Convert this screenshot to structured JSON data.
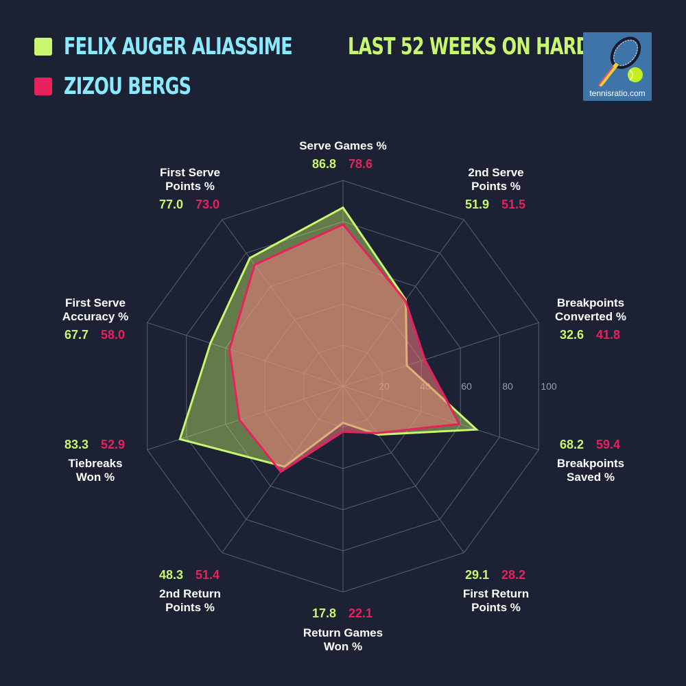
{
  "header": {
    "title": "LAST 52 WEEKS ON HARD",
    "logo_text": "tennisratio.com"
  },
  "colors": {
    "background": "#1c2133",
    "player1": "#c8f66e",
    "player2": "#e8215e",
    "legend_text": "#8be9ff",
    "grid": "#5a6072"
  },
  "chart_data": {
    "type": "radar",
    "title": "LAST 52 WEEKS ON HARD",
    "categories": [
      "Serve Games %",
      "2nd Serve Points %",
      "Breakpoints Converted %",
      "Breakpoints Saved %",
      "First Return Points %",
      "Return Games Won %",
      "2nd Return Points %",
      "Tiebreaks Won %",
      "First Serve Accuracy %",
      "First Serve Points %"
    ],
    "label_lines": [
      [
        "Serve Games %"
      ],
      [
        "2nd Serve",
        "Points %"
      ],
      [
        "Breakpoints",
        "Converted %"
      ],
      [
        "Breakpoints",
        "Saved %"
      ],
      [
        "First Return",
        "Points %"
      ],
      [
        "Return Games",
        "Won %"
      ],
      [
        "2nd Return",
        "Points %"
      ],
      [
        "Tiebreaks",
        "Won %"
      ],
      [
        "First Serve",
        "Accuracy %"
      ],
      [
        "First Serve",
        "Points %"
      ]
    ],
    "series": [
      {
        "name": "FELIX AUGER ALIASSIME",
        "values": [
          86.8,
          51.9,
          32.6,
          68.2,
          29.1,
          17.8,
          48.3,
          83.3,
          67.7,
          77.0
        ]
      },
      {
        "name": "ZIZOU BERGS",
        "values": [
          78.6,
          51.5,
          41.8,
          59.4,
          28.2,
          22.1,
          51.4,
          52.9,
          58.0,
          73.0
        ]
      }
    ],
    "value_labels": [
      [
        "86.8",
        "51.9",
        "32.6",
        "68.2",
        "29.1",
        "17.8",
        "48.3",
        "83.3",
        "67.7",
        "77.0"
      ],
      [
        "78.6",
        "51.5",
        "41.8",
        "59.4",
        "28.2",
        "22.1",
        "51.4",
        "52.9",
        "58.0",
        "73.0"
      ]
    ],
    "rlim": [
      0,
      100
    ],
    "ticks": [
      20,
      40,
      60,
      80,
      100
    ],
    "tick_labels": [
      "20",
      "40",
      "60",
      "80",
      "100"
    ]
  }
}
